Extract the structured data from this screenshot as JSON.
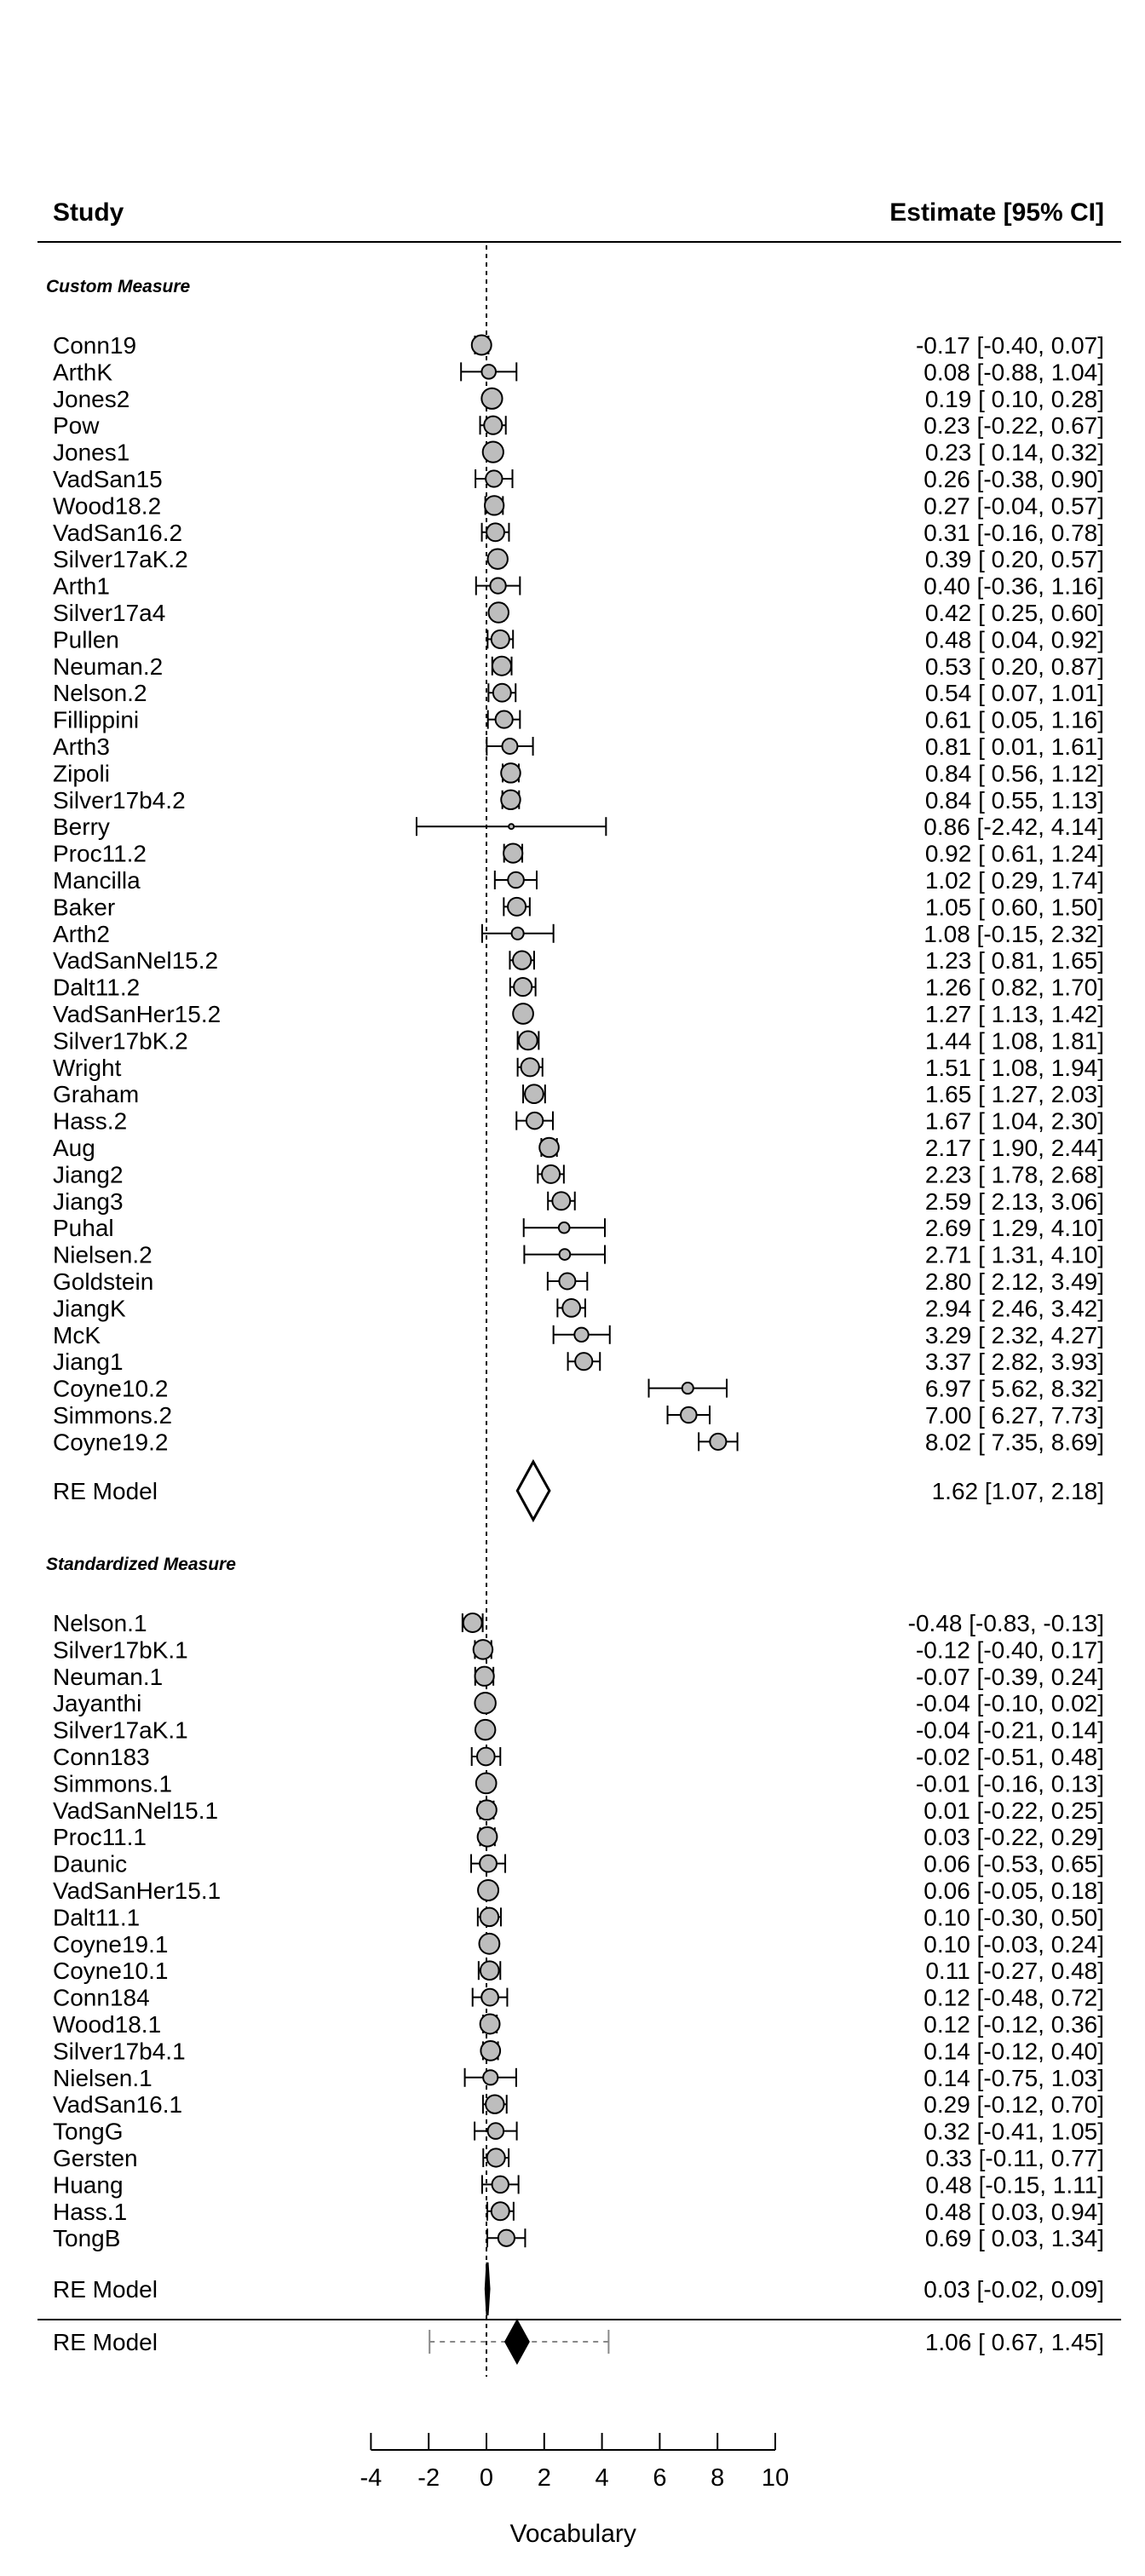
{
  "chart_data": {
    "type": "forest",
    "xlabel": "Vocabulary",
    "xlim": [
      -4,
      10
    ],
    "xticks": [
      "-4",
      "-2",
      "0",
      "2",
      "4",
      "6",
      "8",
      "10"
    ],
    "reference_line_x": 0,
    "header": {
      "study": "Study",
      "estimate": "Estimate [95% CI]"
    },
    "groups": [
      {
        "name": "Custom Measure",
        "studies": [
          {
            "label": "Conn19",
            "est": -0.17,
            "lo": -0.4,
            "hi": 0.07,
            "text": "-0.17 [-0.40,  0.07]"
          },
          {
            "label": "ArthK",
            "est": 0.08,
            "lo": -0.88,
            "hi": 1.04,
            "text": "0.08 [-0.88,  1.04]"
          },
          {
            "label": "Jones2",
            "est": 0.19,
            "lo": 0.1,
            "hi": 0.28,
            "text": "0.19 [ 0.10,  0.28]"
          },
          {
            "label": "Pow",
            "est": 0.23,
            "lo": -0.22,
            "hi": 0.67,
            "text": "0.23 [-0.22,  0.67]"
          },
          {
            "label": "Jones1",
            "est": 0.23,
            "lo": 0.14,
            "hi": 0.32,
            "text": "0.23 [ 0.14,  0.32]"
          },
          {
            "label": "VadSan15",
            "est": 0.26,
            "lo": -0.38,
            "hi": 0.9,
            "text": "0.26 [-0.38,  0.90]"
          },
          {
            "label": "Wood18.2",
            "est": 0.27,
            "lo": -0.04,
            "hi": 0.57,
            "text": "0.27 [-0.04,  0.57]"
          },
          {
            "label": "VadSan16.2",
            "est": 0.31,
            "lo": -0.16,
            "hi": 0.78,
            "text": "0.31 [-0.16,  0.78]"
          },
          {
            "label": "Silver17aK.2",
            "est": 0.39,
            "lo": 0.2,
            "hi": 0.57,
            "text": "0.39 [ 0.20,  0.57]"
          },
          {
            "label": "Arth1",
            "est": 0.4,
            "lo": -0.36,
            "hi": 1.16,
            "text": "0.40 [-0.36,  1.16]"
          },
          {
            "label": "Silver17a4",
            "est": 0.42,
            "lo": 0.25,
            "hi": 0.6,
            "text": "0.42 [ 0.25,  0.60]"
          },
          {
            "label": "Pullen",
            "est": 0.48,
            "lo": 0.04,
            "hi": 0.92,
            "text": "0.48 [ 0.04,  0.92]"
          },
          {
            "label": "Neuman.2",
            "est": 0.53,
            "lo": 0.2,
            "hi": 0.87,
            "text": "0.53 [ 0.20,  0.87]"
          },
          {
            "label": "Nelson.2",
            "est": 0.54,
            "lo": 0.07,
            "hi": 1.01,
            "text": "0.54 [ 0.07,  1.01]"
          },
          {
            "label": "Fillippini",
            "est": 0.61,
            "lo": 0.05,
            "hi": 1.16,
            "text": "0.61 [ 0.05,  1.16]"
          },
          {
            "label": "Arth3",
            "est": 0.81,
            "lo": 0.01,
            "hi": 1.61,
            "text": "0.81 [ 0.01,  1.61]"
          },
          {
            "label": "Zipoli",
            "est": 0.84,
            "lo": 0.56,
            "hi": 1.12,
            "text": "0.84 [ 0.56,  1.12]"
          },
          {
            "label": "Silver17b4.2",
            "est": 0.84,
            "lo": 0.55,
            "hi": 1.13,
            "text": "0.84 [ 0.55,  1.13]"
          },
          {
            "label": "Berry",
            "est": 0.86,
            "lo": -2.42,
            "hi": 4.14,
            "text": "0.86 [-2.42,  4.14]"
          },
          {
            "label": "Proc11.2",
            "est": 0.92,
            "lo": 0.61,
            "hi": 1.24,
            "text": "0.92 [ 0.61,  1.24]"
          },
          {
            "label": "Mancilla",
            "est": 1.02,
            "lo": 0.29,
            "hi": 1.74,
            "text": "1.02 [ 0.29,  1.74]"
          },
          {
            "label": "Baker",
            "est": 1.05,
            "lo": 0.6,
            "hi": 1.5,
            "text": "1.05 [ 0.60,  1.50]"
          },
          {
            "label": "Arth2",
            "est": 1.08,
            "lo": -0.15,
            "hi": 2.32,
            "text": "1.08 [-0.15,  2.32]"
          },
          {
            "label": "VadSanNel15.2",
            "est": 1.23,
            "lo": 0.81,
            "hi": 1.65,
            "text": "1.23 [ 0.81,  1.65]"
          },
          {
            "label": "Dalt11.2",
            "est": 1.26,
            "lo": 0.82,
            "hi": 1.7,
            "text": "1.26 [ 0.82,  1.70]"
          },
          {
            "label": "VadSanHer15.2",
            "est": 1.27,
            "lo": 1.13,
            "hi": 1.42,
            "text": "1.27 [ 1.13,  1.42]"
          },
          {
            "label": "Silver17bK.2",
            "est": 1.44,
            "lo": 1.08,
            "hi": 1.81,
            "text": "1.44 [ 1.08,  1.81]"
          },
          {
            "label": "Wright",
            "est": 1.51,
            "lo": 1.08,
            "hi": 1.94,
            "text": "1.51 [ 1.08,  1.94]"
          },
          {
            "label": "Graham",
            "est": 1.65,
            "lo": 1.27,
            "hi": 2.03,
            "text": "1.65 [ 1.27,  2.03]"
          },
          {
            "label": "Hass.2",
            "est": 1.67,
            "lo": 1.04,
            "hi": 2.3,
            "text": "1.67 [ 1.04,  2.30]"
          },
          {
            "label": "Aug",
            "est": 2.17,
            "lo": 1.9,
            "hi": 2.44,
            "text": "2.17 [ 1.90,  2.44]"
          },
          {
            "label": "Jiang2",
            "est": 2.23,
            "lo": 1.78,
            "hi": 2.68,
            "text": "2.23 [ 1.78,  2.68]"
          },
          {
            "label": "Jiang3",
            "est": 2.59,
            "lo": 2.13,
            "hi": 3.06,
            "text": "2.59 [ 2.13,  3.06]"
          },
          {
            "label": "Puhal",
            "est": 2.69,
            "lo": 1.29,
            "hi": 4.1,
            "text": "2.69 [ 1.29,  4.10]"
          },
          {
            "label": "Nielsen.2",
            "est": 2.71,
            "lo": 1.31,
            "hi": 4.1,
            "text": "2.71 [ 1.31,  4.10]"
          },
          {
            "label": "Goldstein",
            "est": 2.8,
            "lo": 2.12,
            "hi": 3.49,
            "text": "2.80 [ 2.12,  3.49]"
          },
          {
            "label": "JiangK",
            "est": 2.94,
            "lo": 2.46,
            "hi": 3.42,
            "text": "2.94 [ 2.46,  3.42]"
          },
          {
            "label": "McK",
            "est": 3.29,
            "lo": 2.32,
            "hi": 4.27,
            "text": "3.29 [ 2.32,  4.27]"
          },
          {
            "label": "Jiang1",
            "est": 3.37,
            "lo": 2.82,
            "hi": 3.93,
            "text": "3.37 [ 2.82,  3.93]"
          },
          {
            "label": "Coyne10.2",
            "est": 6.97,
            "lo": 5.62,
            "hi": 8.32,
            "text": "6.97 [ 5.62,  8.32]"
          },
          {
            "label": "Simmons.2",
            "est": 7.0,
            "lo": 6.27,
            "hi": 7.73,
            "text": "7.00 [ 6.27,  7.73]"
          },
          {
            "label": "Coyne19.2",
            "est": 8.02,
            "lo": 7.35,
            "hi": 8.69,
            "text": "8.02 [ 7.35,  8.69]"
          }
        ],
        "summary": {
          "label": "RE Model",
          "est": 1.62,
          "lo": 1.07,
          "hi": 2.18,
          "text": "1.62 [1.07, 2.18]"
        }
      },
      {
        "name": "Standardized Measure",
        "studies": [
          {
            "label": "Nelson.1",
            "est": -0.48,
            "lo": -0.83,
            "hi": -0.13,
            "text": "-0.48 [-0.83, -0.13]"
          },
          {
            "label": "Silver17bK.1",
            "est": -0.12,
            "lo": -0.4,
            "hi": 0.17,
            "text": "-0.12 [-0.40,  0.17]"
          },
          {
            "label": "Neuman.1",
            "est": -0.07,
            "lo": -0.39,
            "hi": 0.24,
            "text": "-0.07 [-0.39,  0.24]"
          },
          {
            "label": "Jayanthi",
            "est": -0.04,
            "lo": -0.1,
            "hi": 0.02,
            "text": "-0.04 [-0.10,  0.02]"
          },
          {
            "label": "Silver17aK.1",
            "est": -0.04,
            "lo": -0.21,
            "hi": 0.14,
            "text": "-0.04 [-0.21,  0.14]"
          },
          {
            "label": "Conn183",
            "est": -0.02,
            "lo": -0.51,
            "hi": 0.48,
            "text": "-0.02 [-0.51,  0.48]"
          },
          {
            "label": "Simmons.1",
            "est": -0.01,
            "lo": -0.16,
            "hi": 0.13,
            "text": "-0.01 [-0.16,  0.13]"
          },
          {
            "label": "VadSanNel15.1",
            "est": 0.01,
            "lo": -0.22,
            "hi": 0.25,
            "text": "0.01 [-0.22,  0.25]"
          },
          {
            "label": "Proc11.1",
            "est": 0.03,
            "lo": -0.22,
            "hi": 0.29,
            "text": "0.03 [-0.22,  0.29]"
          },
          {
            "label": "Daunic",
            "est": 0.06,
            "lo": -0.53,
            "hi": 0.65,
            "text": "0.06 [-0.53,  0.65]"
          },
          {
            "label": "VadSanHer15.1",
            "est": 0.06,
            "lo": -0.05,
            "hi": 0.18,
            "text": "0.06 [-0.05,  0.18]"
          },
          {
            "label": "Dalt11.1",
            "est": 0.1,
            "lo": -0.3,
            "hi": 0.5,
            "text": "0.10 [-0.30,  0.50]"
          },
          {
            "label": "Coyne19.1",
            "est": 0.1,
            "lo": -0.03,
            "hi": 0.24,
            "text": "0.10 [-0.03,  0.24]"
          },
          {
            "label": "Coyne10.1",
            "est": 0.11,
            "lo": -0.27,
            "hi": 0.48,
            "text": "0.11 [-0.27,  0.48]"
          },
          {
            "label": "Conn184",
            "est": 0.12,
            "lo": -0.48,
            "hi": 0.72,
            "text": "0.12 [-0.48,  0.72]"
          },
          {
            "label": "Wood18.1",
            "est": 0.12,
            "lo": -0.12,
            "hi": 0.36,
            "text": "0.12 [-0.12,  0.36]"
          },
          {
            "label": "Silver17b4.1",
            "est": 0.14,
            "lo": -0.12,
            "hi": 0.4,
            "text": "0.14 [-0.12,  0.40]"
          },
          {
            "label": "Nielsen.1",
            "est": 0.14,
            "lo": -0.75,
            "hi": 1.03,
            "text": "0.14 [-0.75,  1.03]"
          },
          {
            "label": "VadSan16.1",
            "est": 0.29,
            "lo": -0.12,
            "hi": 0.7,
            "text": "0.29 [-0.12,  0.70]"
          },
          {
            "label": "TongG",
            "est": 0.32,
            "lo": -0.41,
            "hi": 1.05,
            "text": "0.32 [-0.41,  1.05]"
          },
          {
            "label": "Gersten",
            "est": 0.33,
            "lo": -0.11,
            "hi": 0.77,
            "text": "0.33 [-0.11,  0.77]"
          },
          {
            "label": "Huang",
            "est": 0.48,
            "lo": -0.15,
            "hi": 1.11,
            "text": "0.48 [-0.15,  1.11]"
          },
          {
            "label": "Hass.1",
            "est": 0.48,
            "lo": 0.03,
            "hi": 0.94,
            "text": "0.48 [ 0.03,  0.94]"
          },
          {
            "label": "TongB",
            "est": 0.69,
            "lo": 0.03,
            "hi": 1.34,
            "text": "0.69 [ 0.03,  1.34]"
          }
        ],
        "summary": {
          "label": "RE Model",
          "est": 0.03,
          "lo": -0.02,
          "hi": 0.09,
          "text": "0.03 [-0.02, 0.09]"
        }
      }
    ],
    "overall": {
      "label": "RE Model",
      "est": 1.06,
      "lo": 0.67,
      "hi": 1.45,
      "pi_lo": -1.97,
      "pi_hi": 4.23,
      "text": "1.06 [ 0.67,  1.45]"
    }
  }
}
